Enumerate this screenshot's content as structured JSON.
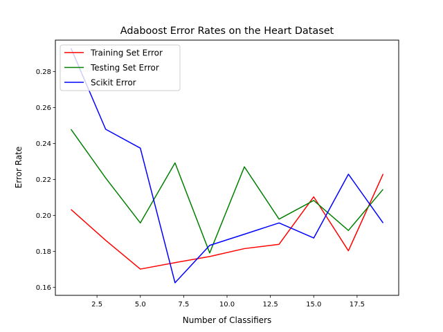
{
  "chart_data": {
    "type": "line",
    "title": "Adaboost Error Rates on the Heart Dataset",
    "xlabel": "Number of Classifiers",
    "ylabel": "Error Rate",
    "xlim": [
      0.1,
      19.9
    ],
    "ylim": [
      0.1555,
      0.2975
    ],
    "x_ticks": [
      2.5,
      5.0,
      7.5,
      10.0,
      12.5,
      15.0,
      17.5
    ],
    "x_tick_labels": [
      "2.5",
      "5.0",
      "7.5",
      "10.0",
      "12.5",
      "15.0",
      "17.5"
    ],
    "y_ticks": [
      0.16,
      0.18,
      0.2,
      0.22,
      0.24,
      0.26,
      0.28
    ],
    "y_tick_labels": [
      "0.16",
      "0.18",
      "0.20",
      "0.22",
      "0.24",
      "0.26",
      "0.28"
    ],
    "grid": false,
    "legend_position": "top-left",
    "x": [
      1,
      3,
      5,
      7,
      9,
      11,
      13,
      15,
      17,
      19
    ],
    "series": [
      {
        "name": "Training Set Error",
        "color": "#ff0000",
        "values": [
          0.2033,
          0.1861,
          0.1701,
          0.1737,
          0.1771,
          0.1815,
          0.1839,
          0.2103,
          0.1803,
          0.223
        ]
      },
      {
        "name": "Testing Set Error",
        "color": "#008000",
        "values": [
          0.2479,
          0.2208,
          0.1958,
          0.2292,
          0.1791,
          0.227,
          0.1979,
          0.2083,
          0.1916,
          0.2145
        ]
      },
      {
        "name": "Scikit Error",
        "color": "#0000ff",
        "values": [
          0.293,
          0.2479,
          0.2374,
          0.1625,
          0.1833,
          0.1895,
          0.1958,
          0.1874,
          0.2229,
          0.1958
        ]
      }
    ]
  }
}
